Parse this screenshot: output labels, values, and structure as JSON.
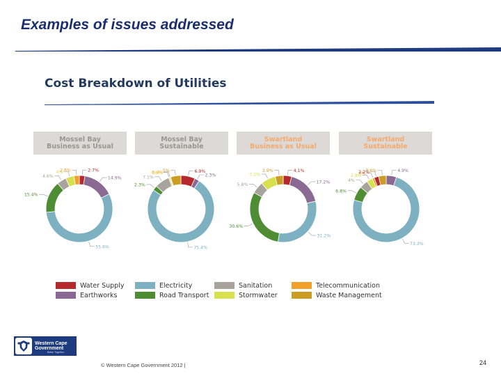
{
  "slide": {
    "title": "Examples of issues addressed",
    "section_title": "Cost Breakdown of Utilities",
    "footer": "© Western Cape Government 2012  |",
    "page_number": "24"
  },
  "logo": {
    "text": "Western Cape\nGovernment",
    "subtext": "Better Together."
  },
  "colors": {
    "title": "#1b2f6e",
    "rule_blue": "#1f3b80",
    "header_bg": "#dcd9d6",
    "header_grey_text": "#9a968f",
    "header_orange_text": "#f5a96b"
  },
  "chart_data": [
    {
      "type": "pie",
      "donut": true,
      "title": "Mossel Bay\nBusiness as Usual",
      "title_style": "grey",
      "slices": [
        {
          "category": "Water Supply",
          "value": 2.7,
          "label": "2.7%"
        },
        {
          "category": "Earthworks",
          "value": 14.9,
          "label": "14.9%"
        },
        {
          "category": "Electricity",
          "value": 55.6,
          "label": "55.6%"
        },
        {
          "category": "Road Transport",
          "value": 15.4,
          "label": "15.4%"
        },
        {
          "category": "Sanitation",
          "value": 4.6,
          "label": "4.6%"
        },
        {
          "category": "Stormwater",
          "value": 4.0,
          "label": "4%"
        },
        {
          "category": "Telecommunication",
          "value": 2.6,
          "label": "2.6%"
        }
      ]
    },
    {
      "type": "pie",
      "donut": true,
      "title": "Mossel Bay\nSustainable",
      "title_style": "grey",
      "slices": [
        {
          "category": "Water Supply",
          "value": 6.9,
          "label": "6.9%"
        },
        {
          "category": "Earthworks",
          "value": 2.3,
          "label": "2.3%"
        },
        {
          "category": "Electricity",
          "value": 75.4,
          "label": "75.4%"
        },
        {
          "category": "Road Transport",
          "value": 2.3,
          "label": "2.3%"
        },
        {
          "category": "Sanitation",
          "value": 7.1,
          "label": "7.1%"
        },
        {
          "category": "Stormwater",
          "value": 0.6,
          "label": "0.6%"
        },
        {
          "category": "Telecommunication",
          "value": 0.4,
          "label": "0.4%"
        },
        {
          "category": "Waste Management",
          "value": 5.0,
          "label": "5%"
        }
      ]
    },
    {
      "type": "pie",
      "donut": true,
      "title": "Swartland\nBusiness as Usual",
      "title_style": "orange",
      "slices": [
        {
          "category": "Water Supply",
          "value": 4.1,
          "label": "4.1%"
        },
        {
          "category": "Earthworks",
          "value": 17.2,
          "label": "17.2%"
        },
        {
          "category": "Electricity",
          "value": 31.2,
          "label": "31.2%"
        },
        {
          "category": "Road Transport",
          "value": 30.6,
          "label": "30.6%"
        },
        {
          "category": "Sanitation",
          "value": 5.8,
          "label": "5.8%"
        },
        {
          "category": "Stormwater",
          "value": 7.2,
          "label": "7.2%"
        },
        {
          "category": "Waste Management",
          "value": 3.9,
          "label": "3.9%"
        }
      ]
    },
    {
      "type": "pie",
      "donut": true,
      "title": "Swartland\nSustainable",
      "title_style": "orange",
      "slices": [
        {
          "category": "Earthworks",
          "value": 4.9,
          "label": "4.9%"
        },
        {
          "category": "Electricity",
          "value": 73.3,
          "label": "73.3%"
        },
        {
          "category": "Road Transport",
          "value": 6.8,
          "label": "6.8%"
        },
        {
          "category": "Sanitation",
          "value": 4.0,
          "label": "4%"
        },
        {
          "category": "Stormwater",
          "value": 2.8,
          "label": "2.8%"
        },
        {
          "category": "Telecommunication",
          "value": 1.0,
          "label": "1%"
        },
        {
          "category": "Water Supply",
          "value": 2.2,
          "label": "2.2%"
        },
        {
          "category": "Waste Management",
          "value": 3.6,
          "label": "3.6%"
        }
      ]
    }
  ],
  "legend": [
    {
      "name": "Water Supply",
      "color": "#b5282c"
    },
    {
      "name": "Electricity",
      "color": "#7db1c2"
    },
    {
      "name": "Sanitation",
      "color": "#a8a39d"
    },
    {
      "name": "Telecommunication",
      "color": "#f2a02c"
    },
    {
      "name": "Earthworks",
      "color": "#8a6a92"
    },
    {
      "name": "Road Transport",
      "color": "#4e8d34"
    },
    {
      "name": "Stormwater",
      "color": "#d7e04e"
    },
    {
      "name": "Waste Management",
      "color": "#cc9d25"
    }
  ]
}
